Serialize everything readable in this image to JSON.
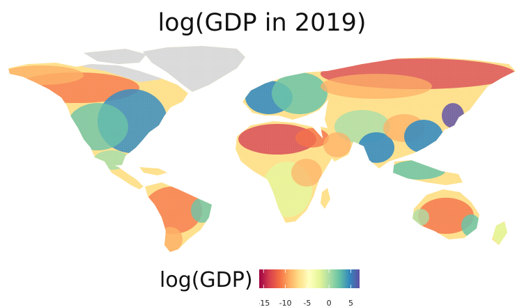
{
  "title": "log(GDP in 2019)",
  "legend": {
    "label": "log(GDP)",
    "ticks": [
      "-15",
      "-10",
      "-5",
      "0",
      "5"
    ],
    "range": [
      -16,
      7
    ],
    "colors": [
      "#9e0142",
      "#d53e4f",
      "#f46d43",
      "#fdae61",
      "#fee08b",
      "#ffffbf",
      "#e6f598",
      "#abdda4",
      "#66c2a5",
      "#3288bd",
      "#5e4fa2"
    ]
  },
  "map": {
    "no_data_color": "#d9d9d9",
    "projection": "equirectangular",
    "regions": [
      {
        "name": "Greenland",
        "level": "no-data"
      },
      {
        "name": "Arctic Canada",
        "level": "no-data"
      },
      {
        "name": "Eastern North America",
        "level": "high"
      },
      {
        "name": "Western North America",
        "level": "medium"
      },
      {
        "name": "Mexico & Central America",
        "level": "medium"
      },
      {
        "name": "Amazon",
        "level": "low"
      },
      {
        "name": "Southern South America",
        "level": "medium"
      },
      {
        "name": "Western Europe",
        "level": "high"
      },
      {
        "name": "Sahara",
        "level": "very-low"
      },
      {
        "name": "Sub-Saharan Africa",
        "level": "medium"
      },
      {
        "name": "Middle East",
        "level": "medium"
      },
      {
        "name": "Siberia",
        "level": "low"
      },
      {
        "name": "Central Asia",
        "level": "medium"
      },
      {
        "name": "India",
        "level": "high"
      },
      {
        "name": "Eastern China",
        "level": "very-high"
      },
      {
        "name": "Japan",
        "level": "very-high"
      },
      {
        "name": "Southeast Asia",
        "level": "high"
      },
      {
        "name": "Australian interior",
        "level": "low"
      },
      {
        "name": "Australian coast",
        "level": "high"
      }
    ]
  }
}
